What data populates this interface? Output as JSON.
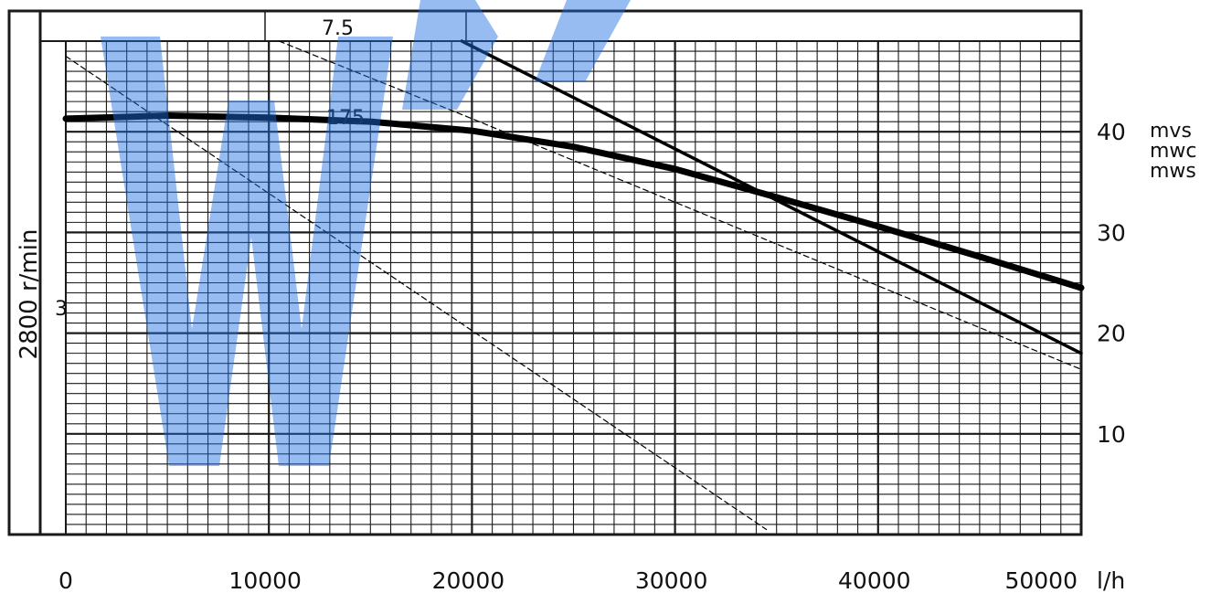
{
  "chart_data": {
    "type": "line",
    "title": "",
    "xlabel": "l/h",
    "ylabel": "mvs mwc mws",
    "speed_label": "2800 r/min",
    "xlim": [
      0,
      50000
    ],
    "ylim": [
      0,
      49
    ],
    "x_ticks": [
      "0",
      "10000",
      "20000",
      "30000",
      "40000",
      "50000"
    ],
    "x_unit": "l/h",
    "y_ticks": [
      {
        "value": 40,
        "label": "40"
      },
      {
        "value": 30,
        "label": "30"
      },
      {
        "value": 20,
        "label": "20"
      },
      {
        "value": 10,
        "label": "10"
      }
    ],
    "y_units": [
      "mvs",
      "mwc",
      "mws"
    ],
    "grid": true,
    "series": [
      {
        "name": "",
        "style": "thick",
        "x": [
          0,
          5000,
          10000,
          15000,
          20000,
          25000,
          30000,
          35000,
          40000,
          45000,
          50000
        ],
        "y": [
          41.3,
          41.6,
          41.4,
          41,
          40.1,
          38.5,
          36.3,
          33.5,
          30.6,
          27.6,
          24.5
        ]
      },
      {
        "name": "",
        "style": "medium",
        "x": [
          19500,
          30000,
          40000,
          50000
        ],
        "y": [
          49,
          38.3,
          28.1,
          18
        ]
      },
      {
        "name": "",
        "style": "dashed",
        "x": [
          0,
          34500
        ],
        "y": [
          47.5,
          0.5
        ]
      },
      {
        "name": "",
        "style": "dashed",
        "x": [
          10500,
          20000,
          30000,
          40000,
          50000
        ],
        "y": [
          49,
          41.3,
          33,
          24.7,
          16.4
        ]
      }
    ],
    "annotations": [
      "7.5",
      "175",
      "3"
    ],
    "colors": {
      "grid": "#1a1a1a",
      "curve": "#000000",
      "watermark": "#1d6fe0"
    }
  }
}
